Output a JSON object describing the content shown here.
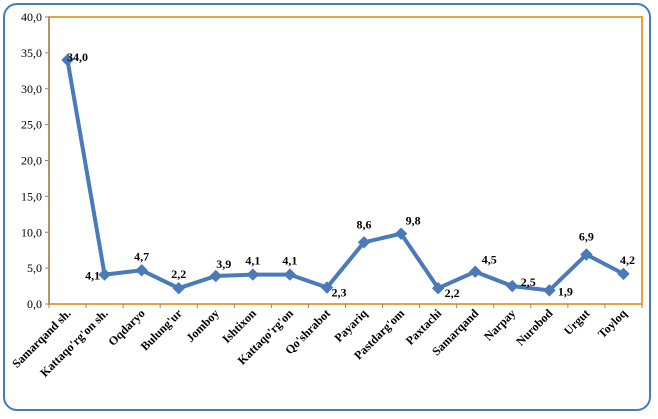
{
  "chart_data": {
    "type": "line",
    "title": "",
    "xlabel": "",
    "ylabel": "",
    "ylim": [
      0,
      40
    ],
    "yticks": [
      "0,0",
      "5,0",
      "10,0",
      "15,0",
      "20,0",
      "25,0",
      "30,0",
      "35,0",
      "40,0"
    ],
    "ytick_values": [
      0,
      5,
      10,
      15,
      20,
      25,
      30,
      35,
      40
    ],
    "grid": false,
    "plot_border_color": "#e8a33c",
    "frame_color": "#4a7ab8",
    "series": [
      {
        "color": "#4a7ab8",
        "categories": [
          "Samarqand sh.",
          "Kattaqo'rg'on sh.",
          "Oqdaryo",
          "Bulung'ur",
          "Jomboy",
          "Ishtixon",
          "Kattaqo'rg'on",
          "Qo'shrabot",
          "Payariq",
          "Pastdarg'om",
          "Paxtachi",
          "Samarqand",
          "Narpay",
          "Nurobod",
          "Urgut",
          "Toyloq"
        ],
        "values": [
          34.0,
          4.1,
          4.7,
          2.2,
          3.9,
          4.1,
          4.1,
          2.3,
          8.6,
          9.8,
          2.2,
          4.5,
          2.5,
          1.9,
          6.9,
          4.2
        ],
        "labels": [
          "34,0",
          "4,1",
          "4,7",
          "2,2",
          "3,9",
          "4,1",
          "4,1",
          "2,3",
          "8,6",
          "9,8",
          "2,2",
          "4,5",
          "2,5",
          "1,9",
          "6,9",
          "4,2"
        ]
      }
    ]
  }
}
